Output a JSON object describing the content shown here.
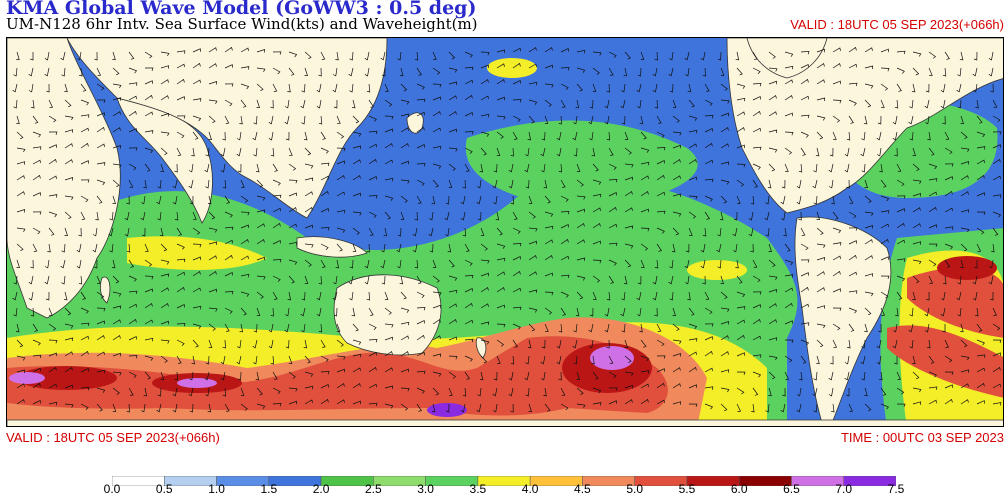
{
  "header": {
    "title": "KMA  Global Wave Model (GoWW3 : 0.5 deg)",
    "subtitle": "UM-N128  6hr Intv. Sea Surface Wind(kts) and Waveheight(m)",
    "valid_top": "VALID : 18UTC 05 SEP 2023(+066h)"
  },
  "footer": {
    "valid": "VALID : 18UTC 05 SEP 2023(+066h)",
    "time": "TIME : 00UTC 03 SEP 2023"
  },
  "colors": {
    "land": "#fbf6dc",
    "bins": [
      "#ffffff",
      "#b4cff0",
      "#5a8ee6",
      "#3f74dc",
      "#4fc248",
      "#8ddc6c",
      "#5bd25f",
      "#f4ee28",
      "#ffc03a",
      "#f08a5c",
      "#e0503c",
      "#bb1616",
      "#8b0000",
      "#d070e6",
      "#8a2be2"
    ]
  },
  "colorbar": {
    "labels": [
      "0.0",
      "0.5",
      "1.0",
      "1.5",
      "2.0",
      "2.5",
      "3.0",
      "3.5",
      "4.0",
      "4.5",
      "5.0",
      "5.5",
      "6.0",
      "6.5",
      "7.0",
      "7.5"
    ]
  }
}
